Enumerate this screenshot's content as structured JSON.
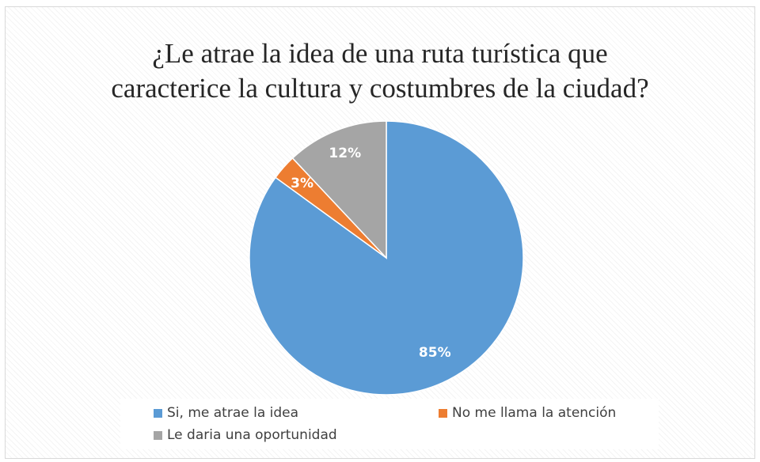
{
  "chart_data": {
    "type": "pie",
    "title_lines": [
      "¿Le atrae la idea de una ruta turística que",
      "caracterice  la cultura y costumbres  de la ciudad?"
    ],
    "slices": [
      {
        "label": "Si, me atrae la idea",
        "value": 85,
        "value_label": "85%",
        "color": "#5b9bd5"
      },
      {
        "label": "No me llama la atención",
        "value": 3,
        "value_label": "3%",
        "color": "#ed7d31"
      },
      {
        "label": "Le daria una oportunidad",
        "value": 12,
        "value_label": "12%",
        "color": "#a5a5a5"
      }
    ],
    "start_angle": "12 o'clock",
    "direction": "clockwise",
    "data_labels": "percent inside slices",
    "legend_position": "bottom"
  }
}
